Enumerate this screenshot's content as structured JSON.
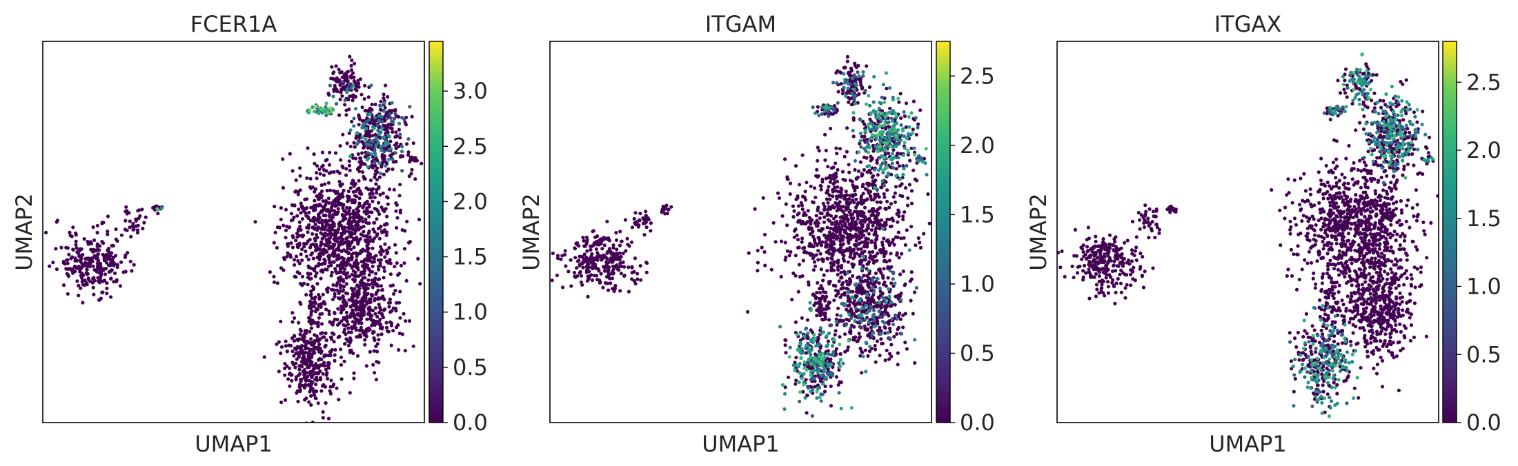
{
  "chart_data": [
    {
      "type": "scatter",
      "title": "FCER1A",
      "xlabel": "UMAP1",
      "ylabel": "UMAP2",
      "colorbar": {
        "cmap": "viridis",
        "range": [
          0.0,
          3.45
        ],
        "ticks": [
          0.0,
          0.5,
          1.0,
          1.5,
          2.0,
          2.5,
          3.0
        ],
        "tick_labels": [
          "0.0",
          "0.5",
          "1.0",
          "1.5",
          "2.0",
          "2.5",
          "3.0"
        ]
      },
      "frame": "box",
      "show_axis_ticks": false,
      "highlight_regions": [
        {
          "region": "upper-right arm tip",
          "level": "high (~3.0)"
        }
      ]
    },
    {
      "type": "scatter",
      "title": "ITGAM",
      "xlabel": "UMAP1",
      "ylabel": "UMAP2",
      "colorbar": {
        "cmap": "viridis",
        "range": [
          0.0,
          2.75
        ],
        "ticks": [
          0.0,
          0.5,
          1.0,
          1.5,
          2.0,
          2.5
        ],
        "tick_labels": [
          "0.0",
          "0.5",
          "1.0",
          "1.5",
          "2.0",
          "2.5"
        ]
      },
      "frame": "box",
      "show_axis_ticks": false,
      "highlight_regions": [
        {
          "region": "upper-right cluster",
          "level": "medium-high (~1.5-2.0)"
        },
        {
          "region": "bottom cluster",
          "level": "medium (~1.5)"
        }
      ]
    },
    {
      "type": "scatter",
      "title": "ITGAX",
      "xlabel": "UMAP1",
      "ylabel": "UMAP2",
      "colorbar": {
        "cmap": "viridis",
        "range": [
          0.0,
          2.8
        ],
        "ticks": [
          0.0,
          0.5,
          1.0,
          1.5,
          2.0,
          2.5
        ],
        "tick_labels": [
          "0.0",
          "0.5",
          "1.0",
          "1.5",
          "2.0",
          "2.5"
        ]
      },
      "frame": "box",
      "show_axis_ticks": false,
      "highlight_regions": [
        {
          "region": "upper-right cluster",
          "level": "medium (~1.5)"
        },
        {
          "region": "bottom cluster",
          "level": "medium (~1.3)"
        }
      ]
    }
  ],
  "colors": {
    "viridis_low": "#440154",
    "viridis_mid": "#21918c",
    "viridis_high": "#fde725",
    "frame": "#000000",
    "background": "#ffffff"
  }
}
